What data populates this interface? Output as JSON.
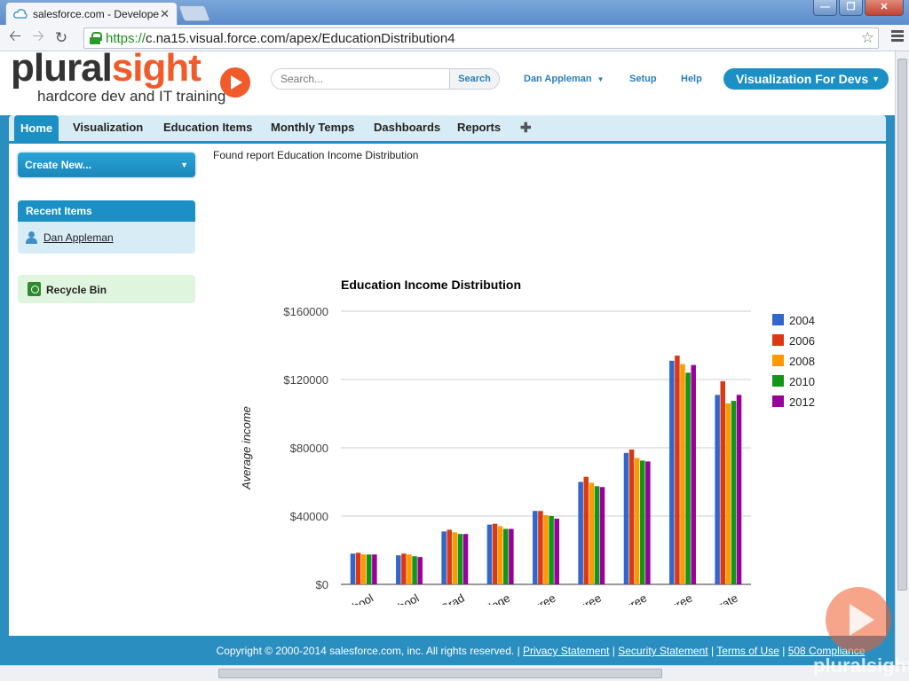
{
  "browser": {
    "tab_title": "salesforce.com - Develope",
    "tab_close": "✕",
    "url_scheme": "https://",
    "url_rest": "c.na15.visual.force.com/apex/EducationDistribution4",
    "window_buttons": [
      "—",
      "❐",
      "✕"
    ]
  },
  "header": {
    "logo_word_main": "plural",
    "logo_word_accent": "sight",
    "logo_tagline": "hardcore dev and IT training",
    "search_placeholder": "Search...",
    "search_button": "Search",
    "user_name": "Dan Appleman",
    "setup": "Setup",
    "help": "Help",
    "app_switcher": "Visualization For Devs"
  },
  "tabs": [
    "Home",
    "Visualization",
    "Education Items",
    "Monthly Temps",
    "Dashboards",
    "Reports"
  ],
  "plus_tab": "✚",
  "sidebar": {
    "create_new": "Create New...",
    "recent_items_header": "Recent Items",
    "recent_items": [
      "Dan Appleman"
    ],
    "recycle_bin": "Recycle Bin"
  },
  "main": {
    "found_report": "Found report Education Income Distribution"
  },
  "chart_data": {
    "type": "bar",
    "title": "Education Income Distribution",
    "ylabel": "Average income",
    "xlabel": "",
    "ylim": [
      0,
      160000
    ],
    "yticks": [
      "$0",
      "$40000",
      "$80000",
      "$120000",
      "$160000"
    ],
    "ytick_values": [
      0,
      40000,
      80000,
      120000,
      160000
    ],
    "grid": true,
    "legend_position": "right",
    "categories": [
      "No High School",
      "Some High School",
      "High School Grad",
      "Some College",
      "AA Degree",
      "Bachelor's Degree",
      "Master's Degree",
      "Professional Degree",
      "Doctorate"
    ],
    "series": [
      {
        "name": "2004",
        "color": "#3366cc",
        "values": [
          18000,
          17000,
          31000,
          35000,
          43000,
          60000,
          77000,
          131000,
          111000
        ]
      },
      {
        "name": "2006",
        "color": "#dc3912",
        "values": [
          18500,
          18000,
          32000,
          35500,
          43000,
          63000,
          79000,
          134000,
          119000
        ]
      },
      {
        "name": "2008",
        "color": "#ff9900",
        "values": [
          17500,
          17500,
          30500,
          34000,
          40500,
          59500,
          74000,
          129000,
          106000
        ]
      },
      {
        "name": "2010",
        "color": "#109618",
        "values": [
          17500,
          16500,
          29500,
          32500,
          40000,
          57500,
          72500,
          124000,
          107500
        ]
      },
      {
        "name": "2012",
        "color": "#990099",
        "values": [
          17500,
          16000,
          29500,
          32500,
          38500,
          57000,
          72000,
          128500,
          111000
        ]
      }
    ]
  },
  "footer": {
    "copyright": "Copyright © 2000-2014 salesforce.com, inc. All rights reserved. |",
    "privacy": "Privacy Statement",
    "security": "Security Statement",
    "terms": "Terms of Use",
    "compliance": "508 Compliance",
    "sep": "|"
  },
  "watermark": {
    "text": "pluralsight"
  }
}
